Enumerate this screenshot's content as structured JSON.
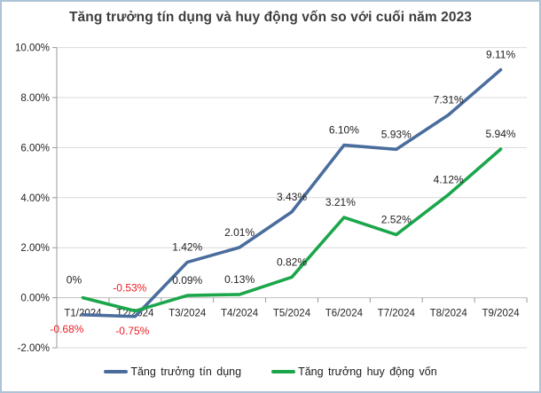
{
  "chart_data": {
    "type": "line",
    "title": "Tăng trưởng tín dụng và huy động vốn so với cuối năm 2023",
    "categories": [
      "T1/2024",
      "T2/2024",
      "T3/2024",
      "T4/2024",
      "T5/2024",
      "T6/2024",
      "T7/2024",
      "T8/2024",
      "T9/2024"
    ],
    "y_axis": {
      "tick_labels": [
        "10.00%",
        "8.00%",
        "6.00%",
        "4.00%",
        "2.00%",
        "0.00%",
        "-2.00%"
      ],
      "tick_values": [
        10,
        8,
        6,
        4,
        2,
        0,
        -2
      ],
      "min": -2,
      "max": 10,
      "step": 2
    },
    "grid": true,
    "legend_position": "bottom",
    "series": [
      {
        "name": "Tăng trưởng tín dụng",
        "color": "#4a6d9e",
        "values": [
          -0.68,
          -0.75,
          1.42,
          2.01,
          3.43,
          6.1,
          5.93,
          7.31,
          9.11
        ],
        "labels": [
          {
            "text": "-0.68%",
            "placement": "below",
            "dx": -18
          },
          {
            "text": "-0.75%",
            "placement": "below",
            "dx": -3
          },
          {
            "text": "1.42%"
          },
          {
            "text": "2.01%"
          },
          {
            "text": "3.43%"
          },
          {
            "text": "6.10%"
          },
          {
            "text": "5.93%"
          },
          {
            "text": "7.31%"
          },
          {
            "text": "9.11%"
          }
        ]
      },
      {
        "name": "Tăng trưởng huy động vốn",
        "color": "#1ca64c",
        "values": [
          0,
          -0.53,
          0.09,
          0.13,
          0.82,
          3.21,
          2.52,
          4.12,
          5.94
        ],
        "labels": [
          {
            "text": "0%",
            "dx": -10,
            "dy": -16
          },
          {
            "text": "-0.53%",
            "dx": -6,
            "dy": -22
          },
          {
            "text": "0.09%"
          },
          {
            "text": "0.13%"
          },
          {
            "text": "0.82%"
          },
          {
            "text": "3.21%",
            "dx": -4
          },
          {
            "text": "2.52%"
          },
          {
            "text": "4.12%"
          },
          {
            "text": "5.94%"
          }
        ]
      }
    ],
    "colors": {
      "negative_label": "#ee1d23",
      "default_label": "#1f1f1f",
      "axis_label": "#262626",
      "gridline": "#d9d9d9",
      "zero_line": "#bfbfbf",
      "axis_line": "#9a9a9a",
      "title": "#3d3d3d"
    }
  }
}
